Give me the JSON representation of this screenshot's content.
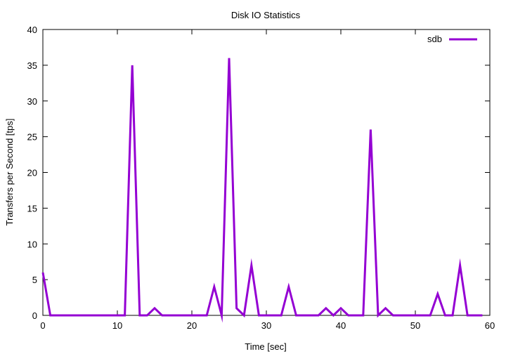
{
  "chart_data": {
    "type": "line",
    "title": "Disk IO Statistics",
    "xlabel": "Time [sec]",
    "ylabel": "Transfers per Second [tps]",
    "xlim": [
      0,
      60
    ],
    "ylim": [
      0,
      40
    ],
    "xticks": [
      0,
      10,
      20,
      30,
      40,
      50,
      60
    ],
    "yticks": [
      0,
      5,
      10,
      15,
      20,
      25,
      30,
      35,
      40
    ],
    "grid": false,
    "legend_position": "top-right",
    "series": [
      {
        "name": "sdb",
        "color": "#9400d3",
        "x": [
          0,
          1,
          2,
          3,
          4,
          5,
          6,
          7,
          8,
          9,
          10,
          11,
          12,
          13,
          14,
          15,
          16,
          17,
          18,
          19,
          20,
          21,
          22,
          23,
          24,
          25,
          26,
          27,
          28,
          29,
          30,
          31,
          32,
          33,
          34,
          35,
          36,
          37,
          38,
          39,
          40,
          41,
          42,
          43,
          44,
          45,
          46,
          47,
          48,
          49,
          50,
          51,
          52,
          53,
          54,
          55,
          56,
          57,
          58,
          59
        ],
        "values": [
          6,
          0,
          0,
          0,
          0,
          0,
          0,
          0,
          0,
          0,
          0,
          0,
          35,
          0,
          0,
          1,
          0,
          0,
          0,
          0,
          0,
          0,
          0,
          4,
          0,
          36,
          1,
          0,
          7,
          0,
          0,
          0,
          0,
          4,
          0,
          0,
          0,
          0,
          1,
          0,
          1,
          0,
          0,
          0,
          26,
          0,
          1,
          0,
          0,
          0,
          0,
          0,
          0,
          3,
          0,
          0,
          7,
          0,
          0,
          0
        ]
      }
    ]
  }
}
